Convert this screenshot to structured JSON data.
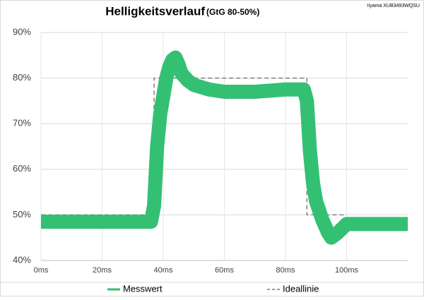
{
  "chart_data": {
    "type": "line",
    "title": "Helligkeitsverlauf",
    "subtitle": "(GtG 80-50%)",
    "annotation": "Iiyama XUB3493WQSU",
    "xlim": [
      0,
      120
    ],
    "xticks": [
      {
        "value": 0,
        "label": "0ms"
      },
      {
        "value": 20,
        "label": "20ms"
      },
      {
        "value": 40,
        "label": "40ms"
      },
      {
        "value": 60,
        "label": "60ms"
      },
      {
        "value": 80,
        "label": "80ms"
      },
      {
        "value": 100,
        "label": "100ms"
      }
    ],
    "ylim": [
      40,
      90
    ],
    "yticks": [
      {
        "value": 40,
        "label": "40%"
      },
      {
        "value": 50,
        "label": "50%"
      },
      {
        "value": 60,
        "label": "60%"
      },
      {
        "value": 70,
        "label": "70%"
      },
      {
        "value": 80,
        "label": "80%"
      },
      {
        "value": 90,
        "label": "90%"
      }
    ],
    "grid": true,
    "legend": "bottom",
    "series": [
      {
        "name": "Messwert",
        "color": "#33c073",
        "style": "solid",
        "x": [
          0,
          5,
          10,
          15,
          20,
          25,
          30,
          36,
          37,
          38,
          39,
          40,
          41,
          42,
          43,
          44,
          45,
          46,
          48,
          50,
          55,
          60,
          70,
          80,
          86,
          87,
          88,
          89,
          90,
          92,
          94,
          95,
          97,
          100,
          105,
          110,
          120
        ],
        "values": [
          48.5,
          48.5,
          48.5,
          48.5,
          48.5,
          48.5,
          48.5,
          48.5,
          52,
          65,
          72,
          76,
          80,
          82.5,
          84,
          84.5,
          83,
          81,
          79.5,
          78.5,
          77.5,
          77,
          77,
          77.5,
          77.5,
          75,
          64,
          57,
          53,
          49,
          46,
          45,
          46,
          48,
          48,
          48,
          48
        ]
      },
      {
        "name": "Ideallinie",
        "color": "#7f7f7f",
        "style": "dashed",
        "x": [
          0,
          37,
          37,
          87,
          87,
          100
        ],
        "values": [
          50,
          50,
          80,
          80,
          50,
          50
        ]
      }
    ]
  }
}
